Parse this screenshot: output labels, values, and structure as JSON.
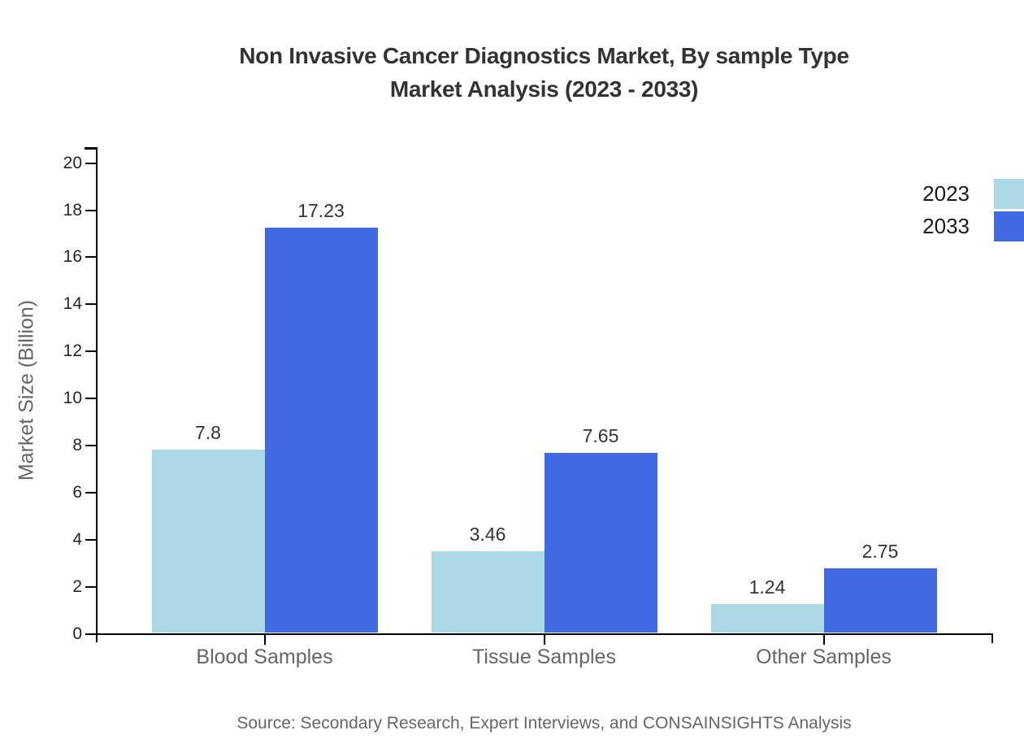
{
  "title": {
    "line1": "Non Invasive Cancer Diagnostics Market, By sample Type",
    "line2": "Market Analysis (2023 - 2033)"
  },
  "source": "Source: Secondary Research, Expert Interviews, and CONSAINSIGHTS Analysis",
  "legend": {
    "items": [
      {
        "label": "2023",
        "color": "#ADD8E6"
      },
      {
        "label": "2033",
        "color": "#4169E1"
      }
    ]
  },
  "chart_data": {
    "type": "bar",
    "title": "Non Invasive Cancer Diagnostics Market, By sample Type Market Analysis (2023 - 2033)",
    "categories": [
      "Blood Samples",
      "Tissue Samples",
      "Other Samples"
    ],
    "series": [
      {
        "name": "2023",
        "color": "#ADD8E6",
        "values": [
          7.8,
          3.46,
          1.24
        ],
        "value_labels": [
          "7.8",
          "3.46",
          "1.24"
        ]
      },
      {
        "name": "2033",
        "color": "#4169E1",
        "values": [
          17.23,
          7.65,
          2.75
        ],
        "value_labels": [
          "17.23",
          "7.65",
          "2.75"
        ]
      }
    ],
    "xlabel": "",
    "ylabel": "Market Size (Billion)",
    "ylim": [
      0,
      20
    ],
    "y_ticks": [
      0,
      2,
      4,
      6,
      8,
      10,
      12,
      14,
      16,
      18,
      20
    ],
    "grid": false,
    "legend_position": "top-right",
    "bar_value_labels": true,
    "axis_color": "#000000",
    "text_colors": {
      "title": "#333333",
      "tick_labels": "#262626",
      "category_labels": "#666666",
      "value_labels": "#333333",
      "axis_title": "#666666",
      "source": "#666666"
    }
  }
}
